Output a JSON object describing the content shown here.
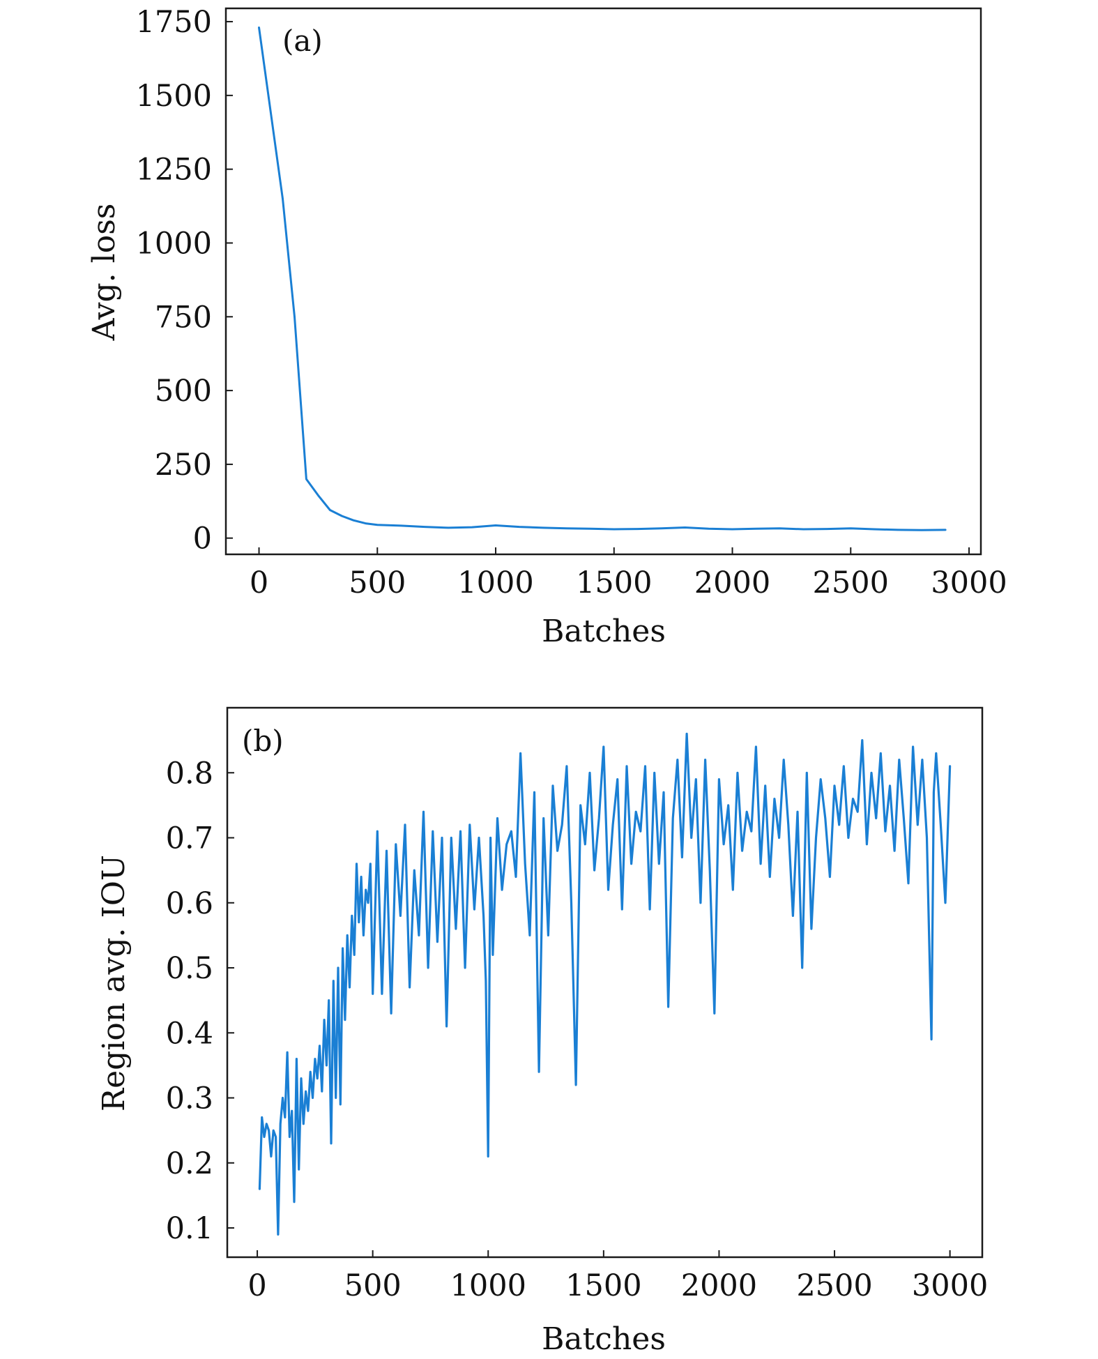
{
  "colors": {
    "line": "#1a7fd4",
    "axis": "#1a1a1a"
  },
  "chart_data": [
    {
      "type": "line",
      "panel_label": "(a)",
      "xlabel": "Batches",
      "ylabel": "Avg. loss",
      "xlim": [
        -140,
        3050
      ],
      "ylim": [
        -55,
        1795
      ],
      "xticks": [
        0,
        500,
        1000,
        1500,
        2000,
        2500,
        3000
      ],
      "yticks": [
        0,
        250,
        500,
        750,
        1000,
        1250,
        1500,
        1750
      ],
      "xtick_labels": [
        "0",
        "500",
        "1000",
        "1500",
        "2000",
        "2500",
        "3000"
      ],
      "ytick_labels": [
        "0",
        "250",
        "500",
        "750",
        "1000",
        "1250",
        "1500",
        "1750"
      ],
      "series": [
        {
          "name": "Avg. loss",
          "x": [
            0,
            100,
            150,
            200,
            250,
            300,
            350,
            400,
            450,
            500,
            600,
            700,
            800,
            900,
            1000,
            1100,
            1200,
            1300,
            1400,
            1500,
            1600,
            1700,
            1800,
            1900,
            2000,
            2100,
            2200,
            2300,
            2400,
            2500,
            2600,
            2700,
            2800,
            2900
          ],
          "y": [
            1730,
            1150,
            750,
            200,
            145,
            95,
            75,
            60,
            50,
            45,
            42,
            38,
            35,
            37,
            43,
            38,
            35,
            33,
            32,
            30,
            31,
            33,
            36,
            32,
            30,
            32,
            33,
            30,
            31,
            33,
            30,
            28,
            27,
            28
          ]
        }
      ]
    },
    {
      "type": "line",
      "panel_label": "(b)",
      "xlabel": "Batches",
      "ylabel": "Region avg. IOU",
      "xlim": [
        -130,
        3140
      ],
      "ylim": [
        0.055,
        0.9
      ],
      "xticks": [
        0,
        500,
        1000,
        1500,
        2000,
        2500,
        3000
      ],
      "yticks": [
        0.1,
        0.2,
        0.3,
        0.4,
        0.5,
        0.6,
        0.7,
        0.8
      ],
      "xtick_labels": [
        "0",
        "500",
        "1000",
        "1500",
        "2000",
        "2500",
        "3000"
      ],
      "ytick_labels": [
        "0.1",
        "0.2",
        "0.3",
        "0.4",
        "0.5",
        "0.6",
        "0.7",
        "0.8"
      ],
      "series": [
        {
          "name": "Region avg. IOU",
          "x": [
            10,
            20,
            30,
            40,
            50,
            60,
            70,
            80,
            90,
            100,
            110,
            120,
            130,
            140,
            150,
            160,
            170,
            180,
            190,
            200,
            210,
            220,
            230,
            240,
            250,
            260,
            270,
            280,
            290,
            300,
            310,
            320,
            330,
            340,
            350,
            360,
            370,
            380,
            390,
            400,
            410,
            420,
            430,
            440,
            450,
            460,
            470,
            480,
            490,
            500,
            520,
            540,
            560,
            580,
            600,
            620,
            640,
            660,
            680,
            700,
            720,
            740,
            760,
            780,
            800,
            820,
            840,
            860,
            880,
            900,
            920,
            940,
            960,
            980,
            990,
            1000,
            1010,
            1020,
            1040,
            1060,
            1080,
            1100,
            1120,
            1140,
            1160,
            1180,
            1200,
            1220,
            1240,
            1260,
            1280,
            1300,
            1320,
            1340,
            1360,
            1380,
            1400,
            1420,
            1440,
            1460,
            1480,
            1500,
            1520,
            1540,
            1560,
            1580,
            1600,
            1620,
            1640,
            1660,
            1680,
            1700,
            1720,
            1740,
            1760,
            1780,
            1800,
            1820,
            1840,
            1860,
            1880,
            1900,
            1920,
            1940,
            1960,
            1980,
            2000,
            2020,
            2040,
            2060,
            2080,
            2100,
            2120,
            2140,
            2160,
            2180,
            2200,
            2220,
            2240,
            2260,
            2280,
            2300,
            2320,
            2340,
            2360,
            2380,
            2400,
            2420,
            2440,
            2460,
            2480,
            2500,
            2520,
            2540,
            2560,
            2580,
            2600,
            2620,
            2640,
            2660,
            2680,
            2700,
            2720,
            2740,
            2760,
            2780,
            2800,
            2820,
            2840,
            2860,
            2880,
            2900,
            2920,
            2930,
            2940,
            2960,
            2980,
            3000
          ],
          "y": [
            0.16,
            0.27,
            0.24,
            0.26,
            0.25,
            0.21,
            0.25,
            0.24,
            0.09,
            0.26,
            0.3,
            0.27,
            0.37,
            0.24,
            0.28,
            0.14,
            0.36,
            0.19,
            0.33,
            0.26,
            0.31,
            0.28,
            0.34,
            0.3,
            0.36,
            0.33,
            0.38,
            0.31,
            0.42,
            0.35,
            0.45,
            0.23,
            0.48,
            0.3,
            0.5,
            0.29,
            0.53,
            0.42,
            0.55,
            0.47,
            0.58,
            0.52,
            0.66,
            0.57,
            0.64,
            0.55,
            0.62,
            0.6,
            0.66,
            0.46,
            0.71,
            0.46,
            0.68,
            0.43,
            0.69,
            0.58,
            0.72,
            0.47,
            0.65,
            0.55,
            0.74,
            0.5,
            0.71,
            0.54,
            0.7,
            0.41,
            0.7,
            0.56,
            0.71,
            0.5,
            0.72,
            0.59,
            0.7,
            0.58,
            0.48,
            0.21,
            0.7,
            0.52,
            0.73,
            0.62,
            0.69,
            0.71,
            0.64,
            0.83,
            0.66,
            0.55,
            0.77,
            0.34,
            0.73,
            0.55,
            0.78,
            0.68,
            0.72,
            0.81,
            0.6,
            0.32,
            0.75,
            0.69,
            0.8,
            0.65,
            0.73,
            0.84,
            0.62,
            0.72,
            0.79,
            0.59,
            0.81,
            0.66,
            0.74,
            0.71,
            0.81,
            0.59,
            0.8,
            0.66,
            0.77,
            0.44,
            0.73,
            0.82,
            0.67,
            0.86,
            0.7,
            0.79,
            0.6,
            0.82,
            0.65,
            0.43,
            0.79,
            0.69,
            0.75,
            0.62,
            0.8,
            0.68,
            0.74,
            0.71,
            0.84,
            0.66,
            0.78,
            0.64,
            0.76,
            0.7,
            0.82,
            0.72,
            0.58,
            0.74,
            0.5,
            0.8,
            0.56,
            0.7,
            0.79,
            0.73,
            0.64,
            0.78,
            0.72,
            0.81,
            0.7,
            0.76,
            0.74,
            0.85,
            0.69,
            0.8,
            0.73,
            0.83,
            0.71,
            0.78,
            0.68,
            0.82,
            0.73,
            0.63,
            0.84,
            0.72,
            0.82,
            0.7,
            0.39,
            0.77,
            0.83,
            0.72,
            0.6,
            0.81
          ]
        }
      ]
    }
  ]
}
